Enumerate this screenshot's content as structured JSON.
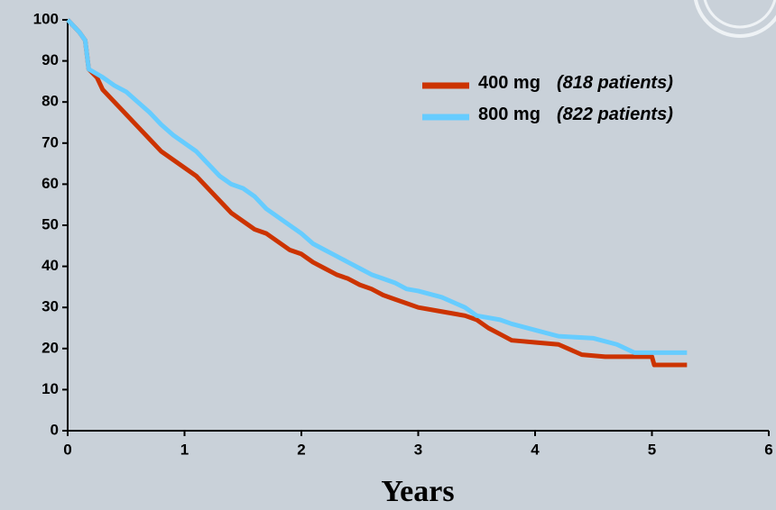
{
  "chart_data": {
    "type": "line",
    "x_label": "Years",
    "xlim": [
      0,
      6
    ],
    "xticks": [
      0,
      1,
      2,
      3,
      4,
      5,
      6
    ],
    "ylim": [
      0,
      100
    ],
    "yticks": [
      0,
      10,
      20,
      30,
      40,
      50,
      60,
      70,
      80,
      90,
      100
    ],
    "legend_position": "upper right",
    "series": [
      {
        "name": "400 mg",
        "note": "(818 patients)",
        "color": "#cc3300",
        "x": [
          0,
          0.1,
          0.15,
          0.18,
          0.25,
          0.3,
          0.4,
          0.5,
          0.6,
          0.7,
          0.8,
          0.9,
          1.0,
          1.1,
          1.2,
          1.3,
          1.4,
          1.5,
          1.6,
          1.7,
          1.8,
          1.9,
          2.0,
          2.1,
          2.2,
          2.3,
          2.4,
          2.5,
          2.6,
          2.7,
          2.8,
          2.9,
          3.0,
          3.2,
          3.4,
          3.5,
          3.6,
          3.7,
          3.8,
          4.0,
          4.2,
          4.4,
          4.6,
          5.0,
          5.02,
          5.3
        ],
        "values": [
          100,
          97,
          95,
          88,
          86,
          83,
          80,
          77,
          74,
          71,
          68,
          66,
          64,
          62,
          59,
          56,
          53,
          51,
          49,
          48,
          46,
          44,
          43,
          41,
          39.5,
          38,
          37,
          35.5,
          34.5,
          33,
          32,
          31,
          30,
          29,
          28,
          27,
          25,
          23.5,
          22,
          21.5,
          21,
          18.5,
          18,
          18,
          16,
          16
        ]
      },
      {
        "name": "800 mg",
        "note": "(822 patients)",
        "color": "#66ccff",
        "x": [
          0,
          0.1,
          0.15,
          0.18,
          0.3,
          0.4,
          0.5,
          0.6,
          0.7,
          0.8,
          0.9,
          1.0,
          1.1,
          1.2,
          1.3,
          1.4,
          1.5,
          1.6,
          1.7,
          1.8,
          1.9,
          2.0,
          2.1,
          2.2,
          2.3,
          2.4,
          2.5,
          2.6,
          2.7,
          2.8,
          2.9,
          3.0,
          3.2,
          3.4,
          3.5,
          3.7,
          3.8,
          4.0,
          4.2,
          4.5,
          4.7,
          4.85,
          5.3
        ],
        "values": [
          100,
          97,
          95,
          88,
          86,
          84,
          82.5,
          80,
          77.5,
          74.5,
          72,
          70,
          68,
          65,
          62,
          60,
          59,
          57,
          54,
          52,
          50,
          48,
          45.5,
          44,
          42.5,
          41,
          39.5,
          38,
          37,
          36,
          34.5,
          34,
          32.5,
          30,
          28,
          27,
          26,
          24.5,
          23,
          22.5,
          21,
          19,
          19
        ]
      }
    ]
  }
}
